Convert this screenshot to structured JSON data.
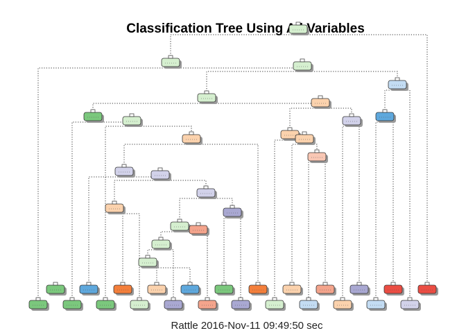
{
  "title": "Classification Tree Using All Variables",
  "caption": "Rattle 2016-Nov-11 09:49:50 sec",
  "colors": {
    "green_dark": "#7bc87d",
    "green_light": "#d5efcf",
    "blue_mid": "#5ea8dd",
    "blue_light": "#c3dcf3",
    "orange": "#f47f3b",
    "orange_light": "#fbd2ad",
    "salmon": "#f4a48c",
    "salmon_light": "#f9c7b4",
    "purple": "#a9a8d2",
    "purple_light": "#d2d2ea",
    "red": "#eb4d43"
  },
  "node_count": 52
}
